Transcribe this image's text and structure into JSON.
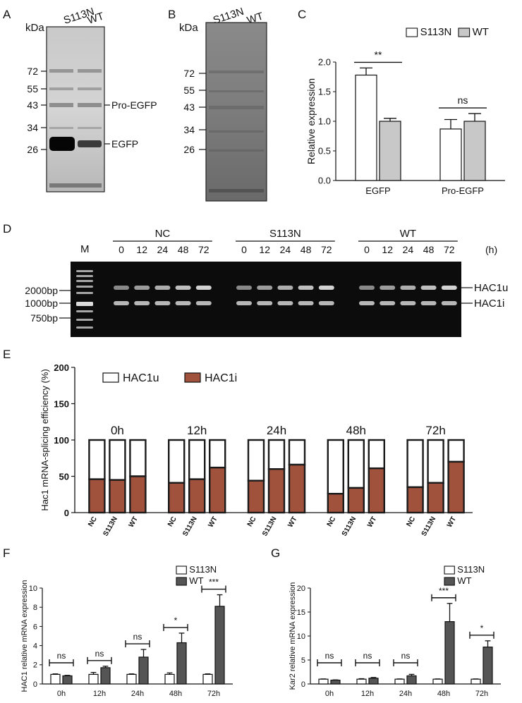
{
  "panels": {
    "A": {
      "letter": "A",
      "kda": "kDa",
      "lanes": [
        "S113N",
        "WT"
      ],
      "markers": [
        "72",
        "55",
        "43",
        "34",
        "26"
      ],
      "annotations": [
        "Pro-EGFP",
        "EGFP"
      ]
    },
    "B": {
      "letter": "B",
      "kda": "kDa",
      "lanes": [
        "S113N",
        "WT"
      ],
      "markers": [
        "72",
        "55",
        "43",
        "34",
        "26"
      ]
    },
    "D": {
      "letter": "D",
      "marker_lane": "M",
      "groups": [
        "NC",
        "S113N",
        "WT"
      ],
      "timepoints": [
        "0",
        "12",
        "24",
        "48",
        "72"
      ],
      "unit": "(h)",
      "ladder": [
        "2000bp",
        "1000bp",
        "750bp"
      ],
      "bands": [
        "HAC1u",
        "HAC1i"
      ]
    }
  },
  "chart_data": [
    {
      "panel": "C",
      "type": "bar",
      "ylabel": "Relative expression",
      "categories": [
        "EGFP",
        "Pro-EGFP"
      ],
      "yticks": [
        "0.0",
        "0.5",
        "1.0",
        "1.5",
        "2.0"
      ],
      "ylim": [
        0,
        2.0
      ],
      "series": [
        {
          "name": "S113N",
          "color": "#ffffff",
          "values": [
            1.78,
            0.87
          ],
          "errors": [
            0.12,
            0.16
          ]
        },
        {
          "name": "WT",
          "color": "#c8c8c8",
          "values": [
            1.0,
            1.0
          ],
          "errors": [
            0.05,
            0.13
          ]
        }
      ],
      "significance": [
        "**",
        "ns"
      ]
    },
    {
      "panel": "E",
      "type": "bar",
      "stacked": true,
      "ylabel": "Hac1 mRNA-splicing efficiency (%)",
      "yticks": [
        "0",
        "50",
        "100",
        "150",
        "200"
      ],
      "ylim": [
        0,
        200
      ],
      "groups": [
        "0h",
        "12h",
        "24h",
        "48h",
        "72h"
      ],
      "categories": [
        "NC",
        "S113N",
        "WT"
      ],
      "series": [
        {
          "name": "HAC1u",
          "color": "#ffffff"
        },
        {
          "name": "HAC1i",
          "color": "#a0523c",
          "values": [
            [
              46,
              45,
              50
            ],
            [
              41,
              46,
              62
            ],
            [
              44,
              60,
              66
            ],
            [
              26,
              34,
              61
            ],
            [
              35,
              41,
              70
            ]
          ]
        }
      ],
      "total": 100
    },
    {
      "panel": "F",
      "type": "bar",
      "ylabel": "HAC1 relative mRNA expression",
      "categories": [
        "0h",
        "12h",
        "24h",
        "48h",
        "72h"
      ],
      "yticks": [
        "0",
        "2",
        "4",
        "6",
        "8",
        "10"
      ],
      "ylim": [
        0,
        10
      ],
      "series": [
        {
          "name": "S113N",
          "color": "#ffffff",
          "values": [
            1.0,
            1.0,
            1.0,
            1.0,
            1.0
          ],
          "errors": [
            0.05,
            0.2,
            0.05,
            0.15,
            0.05
          ]
        },
        {
          "name": "WT",
          "color": "#555555",
          "values": [
            0.85,
            1.7,
            2.8,
            4.3,
            8.1
          ],
          "errors": [
            0.05,
            0.15,
            0.8,
            1.0,
            1.2
          ]
        }
      ],
      "significance": [
        "ns",
        "ns",
        "ns",
        "*",
        "***"
      ]
    },
    {
      "panel": "G",
      "type": "bar",
      "ylabel": "Kar2 relative mRNA expression",
      "categories": [
        "0h",
        "12h",
        "24h",
        "48h",
        "72h"
      ],
      "yticks": [
        "0",
        "5",
        "10",
        "15",
        "20"
      ],
      "ylim": [
        0,
        20
      ],
      "series": [
        {
          "name": "S113N",
          "color": "#ffffff",
          "values": [
            1.0,
            1.0,
            1.0,
            1.0,
            1.0
          ],
          "errors": [
            0.05,
            0.1,
            0.05,
            0.05,
            0.05
          ]
        },
        {
          "name": "WT",
          "color": "#555555",
          "values": [
            0.8,
            1.2,
            1.7,
            13.0,
            7.7
          ],
          "errors": [
            0.05,
            0.15,
            0.3,
            3.8,
            1.3
          ]
        }
      ],
      "significance": [
        "ns",
        "ns",
        "ns",
        "***",
        "*"
      ]
    }
  ]
}
